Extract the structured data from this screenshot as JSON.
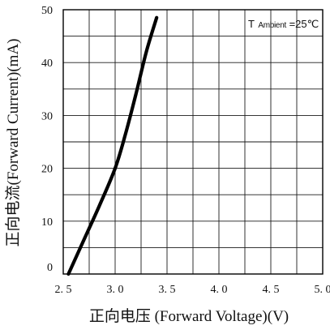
{
  "chart_data": {
    "type": "line",
    "xlabel": "正向电压 (Forward Voltage)(V)",
    "ylabel": "正向电流(Forward Current)(mA)",
    "annotation": {
      "main": "T",
      "sub": "Ambient",
      "suffix": "=25℃"
    },
    "x_ticks": [
      "2. 5",
      "3. 0",
      "3. 5",
      "4. 0",
      "4. 5",
      "5. 0"
    ],
    "y_ticks": [
      "0",
      "10",
      "20",
      "30",
      "40",
      "50"
    ],
    "xlim": [
      2.5,
      5.0
    ],
    "ylim": [
      0,
      50
    ],
    "x_minor_step": 0.25,
    "y_minor_step": 5,
    "grid": true,
    "line_color": "#000000",
    "series": [
      {
        "x": [
          2.55,
          2.7,
          2.85,
          3.0,
          3.1,
          3.2,
          3.3,
          3.4
        ],
        "y": [
          0,
          6.5,
          13.0,
          20.0,
          26.5,
          34.0,
          42.0,
          48.5
        ]
      }
    ]
  }
}
